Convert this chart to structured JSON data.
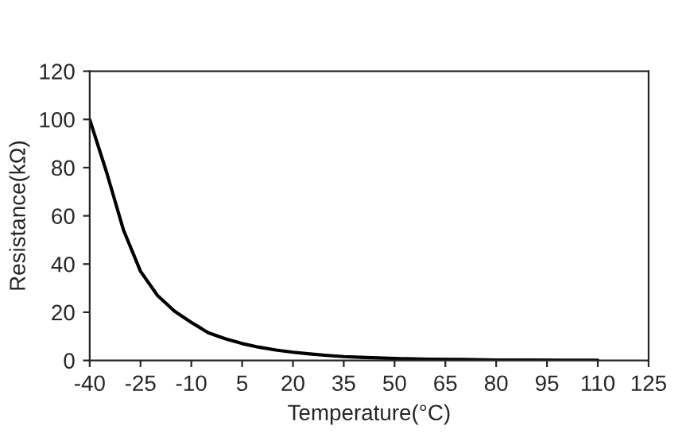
{
  "chart_data": {
    "type": "line",
    "xlabel": "Temperature(°C)",
    "ylabel": "Resistance(kΩ)",
    "x": [
      -40,
      -35,
      -30,
      -25,
      -20,
      -15,
      -10,
      -5,
      0,
      5,
      10,
      15,
      20,
      25,
      30,
      35,
      40,
      50,
      60,
      70,
      80,
      90,
      100,
      110
    ],
    "series": [
      {
        "color": "#000000",
        "values": [
          100,
          78,
          54,
          37,
          27,
          20.5,
          15.8,
          11.5,
          9,
          7,
          5.5,
          4.3,
          3.4,
          2.7,
          2.1,
          1.6,
          1.3,
          0.8,
          0.5,
          0.4,
          0.2,
          0.2,
          0.1,
          0.1
        ]
      }
    ],
    "xlim": [
      -40,
      125
    ],
    "xticks": [
      -40,
      -25,
      -10,
      5,
      20,
      35,
      50,
      65,
      80,
      95,
      110,
      125
    ],
    "ylim": [
      0,
      120
    ],
    "yticks": [
      0,
      20,
      40,
      60,
      80,
      100,
      120
    ],
    "grid": false,
    "legend": false,
    "marker": "none",
    "line_style": "solid"
  }
}
